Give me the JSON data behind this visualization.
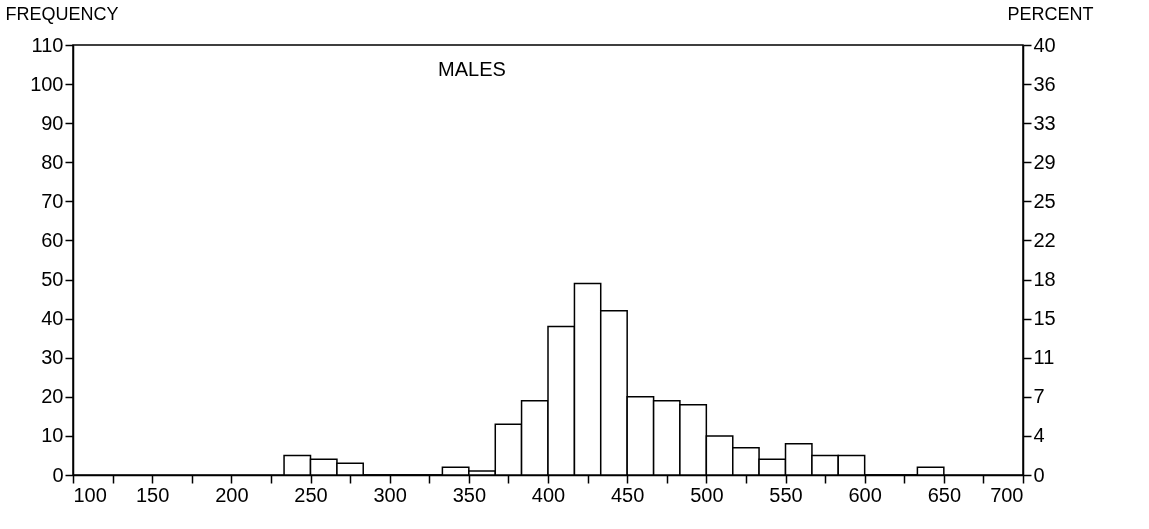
{
  "chart_data": {
    "type": "histogram",
    "title": "MALES",
    "ylabel": "FREQUENCY",
    "y2label": "PERCENT",
    "bins": [
      233.3,
      250,
      266.7,
      283.3,
      333.3,
      350,
      366.7,
      383.3,
      400,
      416.7,
      433.3,
      450,
      466.7,
      483.3,
      500,
      516.7,
      533.3,
      550,
      566.7,
      583.3,
      600,
      633.3,
      650
    ],
    "values": [
      5,
      4,
      3,
      0,
      2,
      1,
      13,
      19,
      38,
      49,
      42,
      20,
      19,
      18,
      10,
      7,
      4,
      8,
      5,
      5,
      0,
      2
    ],
    "color": "#ffffff",
    "xlim": [
      100,
      700
    ],
    "xticks": [
      100,
      {
        "value": 125,
        "label": null
      },
      150,
      {
        "value": 175,
        "label": null
      },
      200,
      {
        "value": 225,
        "label": null
      },
      250,
      {
        "value": 275,
        "label": null
      },
      300,
      {
        "value": 325,
        "label": null
      },
      350,
      {
        "value": 375,
        "label": null
      },
      400,
      {
        "value": 425,
        "label": null
      },
      450,
      {
        "value": 475,
        "label": null
      },
      500,
      {
        "value": 525,
        "label": null
      },
      550,
      {
        "value": 575,
        "label": null
      },
      600,
      {
        "value": 625,
        "label": null
      },
      650,
      {
        "value": 675,
        "label": null
      },
      700
    ],
    "ylim": [
      0,
      110
    ],
    "yticks": [
      0,
      10,
      20,
      30,
      40,
      50,
      60,
      70,
      80,
      90,
      100,
      110
    ],
    "y2lim": [
      0,
      40
    ],
    "y2ticks": [
      0,
      {
        "value": 3.64,
        "label": "4"
      },
      {
        "value": 7.27,
        "label": "7"
      },
      {
        "value": 10.91,
        "label": "11"
      },
      {
        "value": 14.55,
        "label": "15"
      },
      {
        "value": 18.18,
        "label": "18"
      },
      {
        "value": 21.82,
        "label": "22"
      },
      {
        "value": 25.45,
        "label": "25"
      },
      {
        "value": 29.09,
        "label": "29"
      },
      {
        "value": 32.73,
        "label": "33"
      },
      {
        "value": 36.36,
        "label": "36"
      },
      40
    ],
    "grid": false
  }
}
